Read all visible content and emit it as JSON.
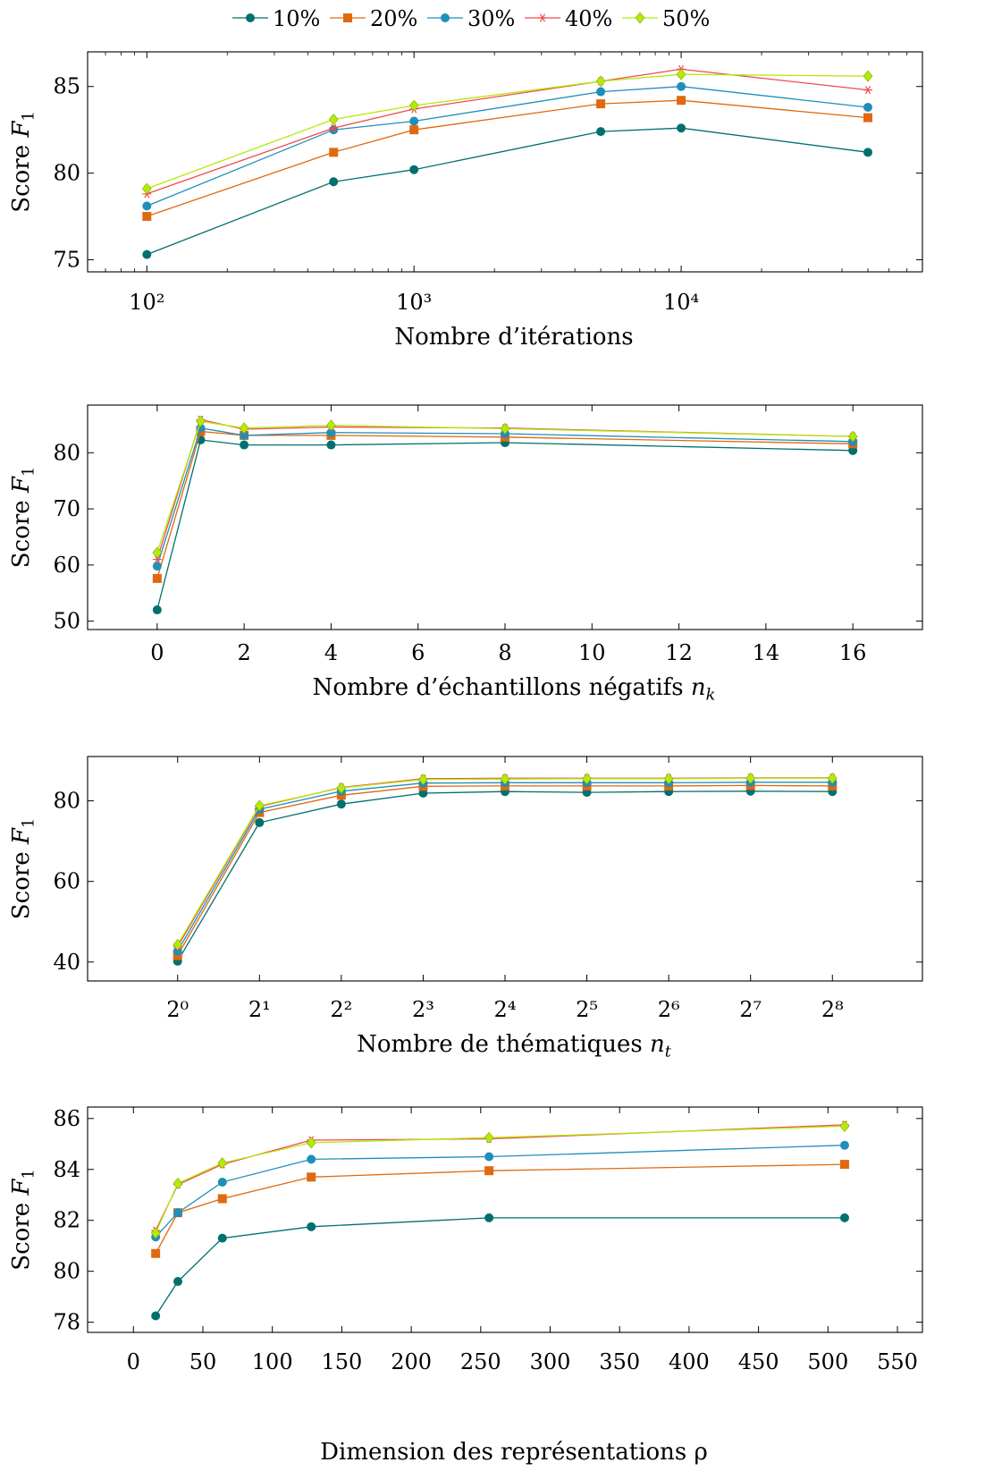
{
  "legend": [
    {
      "name": "10%",
      "color": "#00706f",
      "marker": "circle"
    },
    {
      "name": "20%",
      "color": "#e0690f",
      "marker": "square"
    },
    {
      "name": "30%",
      "color": "#1f8fba",
      "marker": "circle"
    },
    {
      "name": "40%",
      "color": "#ef4a4e",
      "marker": "star"
    },
    {
      "name": "50%",
      "color": "#b3ea09",
      "marker": "diamond"
    }
  ],
  "chart_data": [
    {
      "type": "line",
      "xscale": "log",
      "xlabel": "Nombre d’itérations",
      "ylabel": "Score F1",
      "xlim": [
        60,
        80000
      ],
      "ylim": [
        74.3,
        87
      ],
      "xticks": [
        100,
        1000,
        10000
      ],
      "xtick_labels": [
        "10²",
        "10³",
        "10⁴"
      ],
      "yticks": [
        75,
        80,
        85
      ],
      "x": [
        100,
        500,
        1000,
        5000,
        10000,
        50000
      ],
      "series": [
        {
          "name": "10%",
          "values": [
            75.3,
            79.5,
            80.2,
            82.4,
            82.6,
            81.2
          ]
        },
        {
          "name": "20%",
          "values": [
            77.5,
            81.2,
            82.5,
            84.0,
            84.2,
            83.2
          ]
        },
        {
          "name": "30%",
          "values": [
            78.1,
            82.5,
            83.0,
            84.7,
            85.0,
            83.8
          ]
        },
        {
          "name": "40%",
          "values": [
            78.8,
            82.6,
            83.7,
            85.3,
            86.0,
            84.8
          ]
        },
        {
          "name": "50%",
          "values": [
            79.1,
            83.1,
            83.9,
            85.3,
            85.7,
            85.6
          ]
        }
      ]
    },
    {
      "type": "line",
      "xscale": "linear",
      "xlabel": "Nombre d’échantillons négatifs n_k",
      "ylabel": "Score F1",
      "xlim": [
        -1.6,
        17.6
      ],
      "ylim": [
        48.5,
        88.5
      ],
      "xticks": [
        0,
        2,
        4,
        6,
        8,
        10,
        12,
        14,
        16
      ],
      "xtick_labels": [
        "0",
        "2",
        "4",
        "6",
        "8",
        "10",
        "12",
        "14",
        "16"
      ],
      "yticks": [
        50,
        60,
        70,
        80
      ],
      "x": [
        0,
        1,
        2,
        4,
        8,
        16
      ],
      "series": [
        {
          "name": "10%",
          "values": [
            52.0,
            82.3,
            81.4,
            81.4,
            81.8,
            80.4
          ]
        },
        {
          "name": "20%",
          "values": [
            57.6,
            83.8,
            83.1,
            83.1,
            82.8,
            81.6
          ]
        },
        {
          "name": "30%",
          "values": [
            59.8,
            84.4,
            83.1,
            83.6,
            83.4,
            82.0
          ]
        },
        {
          "name": "40%",
          "values": [
            61.0,
            85.9,
            84.2,
            84.6,
            84.4,
            82.9
          ]
        },
        {
          "name": "50%",
          "values": [
            62.2,
            85.6,
            84.4,
            84.9,
            84.3,
            82.9
          ]
        }
      ]
    },
    {
      "type": "line",
      "xscale": "log2",
      "xlabel": "Nombre de thématiques n_t",
      "ylabel": "Score F1",
      "xlim": [
        -1.1,
        9.1
      ],
      "ylim": [
        35.3,
        91
      ],
      "xticks": [
        0,
        1,
        2,
        3,
        4,
        5,
        6,
        7,
        8
      ],
      "xtick_labels": [
        "2⁰",
        "2¹",
        "2²",
        "2³",
        "2⁴",
        "2⁵",
        "2⁶",
        "2⁷",
        "2⁸"
      ],
      "yticks": [
        40,
        60,
        80
      ],
      "x": [
        0,
        1,
        2,
        3,
        4,
        5,
        6,
        7,
        8
      ],
      "series": [
        {
          "name": "10%",
          "values": [
            40.2,
            74.6,
            79.2,
            81.9,
            82.3,
            82.1,
            82.3,
            82.4,
            82.3
          ]
        },
        {
          "name": "20%",
          "values": [
            41.6,
            77.1,
            81.4,
            83.6,
            83.7,
            83.7,
            83.7,
            83.8,
            83.7
          ]
        },
        {
          "name": "30%",
          "values": [
            42.7,
            77.9,
            82.4,
            84.4,
            84.5,
            84.5,
            84.5,
            84.6,
            84.6
          ]
        },
        {
          "name": "40%",
          "values": [
            43.8,
            78.6,
            83.3,
            85.5,
            85.6,
            85.6,
            85.6,
            85.7,
            85.7
          ]
        },
        {
          "name": "50%",
          "values": [
            44.3,
            78.8,
            83.2,
            85.3,
            85.4,
            85.5,
            85.5,
            85.6,
            85.6
          ]
        }
      ]
    },
    {
      "type": "line",
      "xscale": "linear",
      "xlabel": "Dimension des représentations ρ",
      "ylabel": "Score F1",
      "xlim": [
        -33,
        568
      ],
      "ylim": [
        77.6,
        86.45
      ],
      "xticks": [
        0,
        50,
        100,
        150,
        200,
        250,
        300,
        350,
        400,
        450,
        500,
        550
      ],
      "xtick_labels": [
        "0",
        "50",
        "100",
        "150",
        "200",
        "250",
        "300",
        "350",
        "400",
        "450",
        "500",
        "550"
      ],
      "yticks": [
        78,
        80,
        82,
        84,
        86
      ],
      "x": [
        16,
        32,
        64,
        128,
        256,
        512
      ],
      "series": [
        {
          "name": "10%",
          "values": [
            78.25,
            79.6,
            81.3,
            81.75,
            82.1,
            82.1
          ]
        },
        {
          "name": "20%",
          "values": [
            80.7,
            82.3,
            82.85,
            83.7,
            83.95,
            84.2
          ]
        },
        {
          "name": "30%",
          "values": [
            81.35,
            82.3,
            83.5,
            84.4,
            84.5,
            84.95
          ]
        },
        {
          "name": "40%",
          "values": [
            81.6,
            83.4,
            84.2,
            85.15,
            85.2,
            85.75
          ]
        },
        {
          "name": "50%",
          "values": [
            81.5,
            83.45,
            84.25,
            85.05,
            85.25,
            85.7
          ]
        }
      ]
    }
  ]
}
